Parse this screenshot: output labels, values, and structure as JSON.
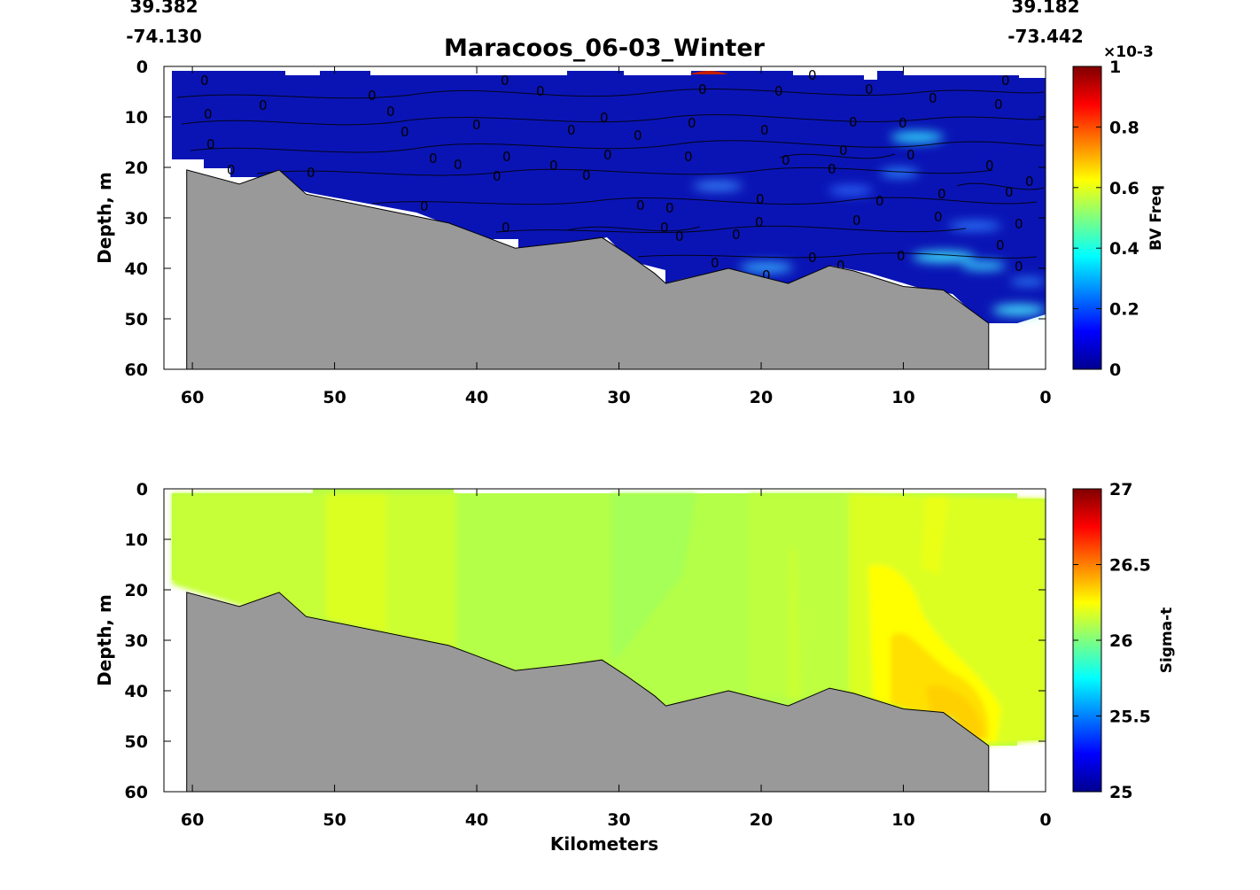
{
  "chart_data": [
    {
      "type": "heatmap",
      "title": "Maracoos_06-03_Winter",
      "xlabel": "",
      "ylabel": "Depth, m",
      "xlim": [
        62,
        0
      ],
      "ylim": [
        60,
        0
      ],
      "xticks": [
        60,
        50,
        40,
        30,
        20,
        10,
        0
      ],
      "yticks": [
        0,
        10,
        20,
        30,
        40,
        50,
        60
      ],
      "corner_labels": {
        "left_lat": "39.382",
        "left_lon": "-74.130",
        "right_lat": "39.182",
        "right_lon": "-73.442"
      },
      "colorbar": {
        "label": "BV Freq",
        "min": 0,
        "max": 1,
        "ticks": [
          "0",
          "0.2",
          "0.4",
          "0.6",
          "0.8",
          "1"
        ],
        "multiplier": "×10-3",
        "colormap": "jet"
      },
      "contour_label": "0",
      "bathymetry_km": [
        60.4,
        56.7,
        53.9,
        52,
        42,
        40,
        37.3,
        33.5,
        31.2,
        29.5,
        27.5,
        26.7,
        22.3,
        18.1,
        15.2,
        13.5,
        10,
        7.2,
        4
      ]
    },
    {
      "type": "heatmap",
      "title": "",
      "xlabel": "Kilometers",
      "ylabel": "Depth, m",
      "xlim": [
        62,
        0
      ],
      "ylim": [
        60,
        0
      ],
      "xticks": [
        60,
        50,
        40,
        30,
        20,
        10,
        0
      ],
      "yticks": [
        0,
        10,
        20,
        30,
        40,
        50,
        60
      ],
      "colorbar": {
        "label": "Sigma-t",
        "min": 25,
        "max": 27,
        "ticks": [
          "25",
          "25.5",
          "26",
          "26.5",
          "27"
        ],
        "colormap": "jet"
      },
      "bathymetry_depth_m": [
        20.5,
        23.3,
        20.5,
        25.3,
        31,
        33.1,
        36,
        34.8,
        33.9,
        37,
        41,
        43,
        40,
        43,
        39.5,
        40.5,
        43.6,
        44.3,
        50.9
      ]
    }
  ],
  "colors": {
    "land": "#999999",
    "bv_background": "#0a14b4",
    "sigma_background": "#b4ff48"
  }
}
